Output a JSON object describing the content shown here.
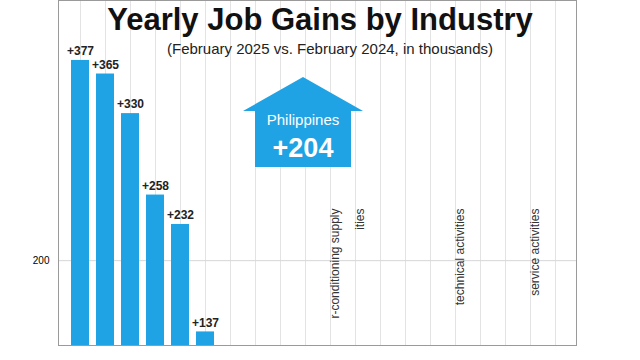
{
  "chart_data": {
    "type": "bar",
    "title": "Yearly Job Gains by Industry",
    "subtitle": "(February 2025 vs. February 2024, in thousands)",
    "annotation": {
      "text": "Philippines",
      "value": 204,
      "value_label": "+204"
    },
    "categories": [
      null,
      null,
      null,
      null,
      null,
      null,
      null,
      null,
      null,
      null,
      "r-conditioning supply",
      "ities",
      null,
      null,
      null,
      "technical activities",
      null,
      null,
      "service activities",
      null
    ],
    "values": [
      377,
      365,
      330,
      258,
      232,
      137,
      null,
      null,
      null,
      null,
      null,
      null,
      null,
      null,
      null,
      null,
      null,
      null,
      null,
      null
    ],
    "value_labels": [
      "+377",
      "+365",
      "+330",
      "+258",
      "+232",
      "+137",
      null,
      null,
      null,
      null,
      null,
      null,
      null,
      null,
      null,
      null,
      null,
      null,
      null,
      null
    ],
    "color": "#1fa3e4",
    "ylim": [
      125,
      430
    ],
    "yticks": [
      200
    ],
    "grid": true,
    "data_labels": true
  }
}
